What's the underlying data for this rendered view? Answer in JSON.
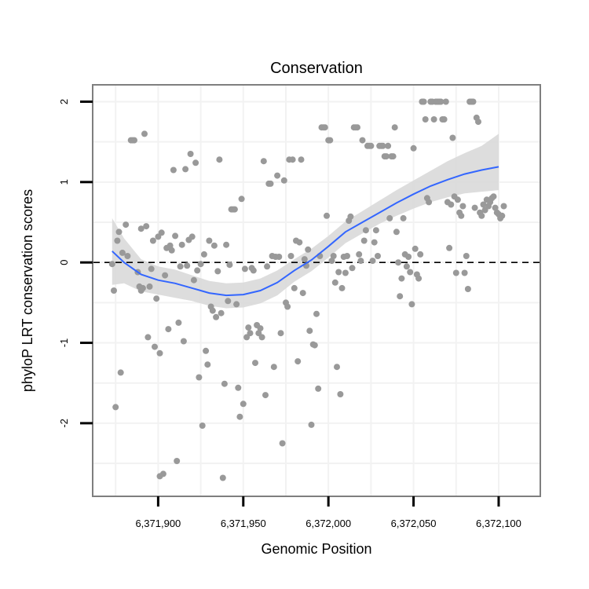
{
  "chart_data": {
    "type": "scatter",
    "title": "Conservation",
    "xlabel": "Genomic Position",
    "ylabel": "phyloP LRT conservation scores",
    "xlim": [
      6371862,
      6372124
    ],
    "ylim": [
      -2.9,
      2.2
    ],
    "x_ticks": [
      6371900,
      6371950,
      6372000,
      6372050,
      6372100
    ],
    "x_tick_labels": [
      "6,371,900",
      "6,371,950",
      "6,372,000",
      "6,372,050",
      "6,372,100"
    ],
    "y_ticks": [
      -2,
      -1,
      0,
      1,
      2
    ],
    "y_tick_labels": [
      "-2",
      "-1",
      "0",
      "1",
      "2"
    ],
    "reference_line": {
      "y": 0,
      "style": "dashed"
    },
    "grid": true,
    "colors": {
      "points": "#999999",
      "smooth": "#3366ff",
      "ribbon": "#d9d9d9",
      "grid": "#f2f2f2",
      "border": "#7f7f7f",
      "refline": "#000000"
    },
    "points": [
      [
        6371873,
        -0.02
      ],
      [
        6371874,
        -0.35
      ],
      [
        6371875,
        -1.8
      ],
      [
        6371876,
        0.27
      ],
      [
        6371877,
        0.38
      ],
      [
        6371878,
        -1.37
      ],
      [
        6371879,
        0.12
      ],
      [
        6371881,
        0.47
      ],
      [
        6371882,
        0.08
      ],
      [
        6371884,
        1.52
      ],
      [
        6371885,
        1.52
      ],
      [
        6371886,
        1.52
      ],
      [
        6371888,
        -0.12
      ],
      [
        6371889,
        -0.3
      ],
      [
        6371890,
        -0.35
      ],
      [
        6371890,
        0.42
      ],
      [
        6371891,
        -0.32
      ],
      [
        6371892,
        1.6
      ],
      [
        6371893,
        0.45
      ],
      [
        6371894,
        -0.93
      ],
      [
        6371895,
        -0.3
      ],
      [
        6371896,
        -0.08
      ],
      [
        6371897,
        0.27
      ],
      [
        6371898,
        -1.05
      ],
      [
        6371899,
        -0.45
      ],
      [
        6371900,
        0.32
      ],
      [
        6371901,
        -1.13
      ],
      [
        6371902,
        0.37
      ],
      [
        6371901,
        -2.66
      ],
      [
        6371903,
        -2.63
      ],
      [
        6371904,
        -0.16
      ],
      [
        6371905,
        0.18
      ],
      [
        6371906,
        -0.83
      ],
      [
        6371907,
        0.21
      ],
      [
        6371908,
        0.15
      ],
      [
        6371909,
        1.15
      ],
      [
        6371910,
        0.33
      ],
      [
        6371911,
        -2.47
      ],
      [
        6371912,
        -0.75
      ],
      [
        6371913,
        -0.05
      ],
      [
        6371914,
        0.22
      ],
      [
        6371915,
        -0.98
      ],
      [
        6371916,
        1.16
      ],
      [
        6371917,
        -0.04
      ],
      [
        6371918,
        0.28
      ],
      [
        6371919,
        1.35
      ],
      [
        6371920,
        0.32
      ],
      [
        6371921,
        -0.22
      ],
      [
        6371922,
        1.24
      ],
      [
        6371923,
        -0.1
      ],
      [
        6371924,
        -1.43
      ],
      [
        6371925,
        -0.02
      ],
      [
        6371926,
        -2.03
      ],
      [
        6371927,
        0.1
      ],
      [
        6371928,
        -1.1
      ],
      [
        6371929,
        -1.27
      ],
      [
        6371930,
        0.27
      ],
      [
        6371931,
        -0.55
      ],
      [
        6371932,
        -0.6
      ],
      [
        6371933,
        0.21
      ],
      [
        6371934,
        -0.68
      ],
      [
        6371935,
        -0.11
      ],
      [
        6371936,
        1.28
      ],
      [
        6371937,
        -0.63
      ],
      [
        6371938,
        -2.68
      ],
      [
        6371939,
        -1.51
      ],
      [
        6371940,
        0.22
      ],
      [
        6371941,
        -0.48
      ],
      [
        6371942,
        -0.03
      ],
      [
        6371943,
        0.66
      ],
      [
        6371944,
        0.66
      ],
      [
        6371945,
        0.66
      ],
      [
        6371946,
        -0.52
      ],
      [
        6371947,
        -1.56
      ],
      [
        6371948,
        -1.92
      ],
      [
        6371949,
        0.79
      ],
      [
        6371950,
        -1.76
      ],
      [
        6371951,
        -0.08
      ],
      [
        6371952,
        -0.93
      ],
      [
        6371953,
        -0.81
      ],
      [
        6371954,
        -0.88
      ],
      [
        6371955,
        -0.07
      ],
      [
        6371956,
        -0.1
      ],
      [
        6371957,
        -1.25
      ],
      [
        6371958,
        -0.78
      ],
      [
        6371959,
        -0.88
      ],
      [
        6371960,
        -0.82
      ],
      [
        6371961,
        -0.93
      ],
      [
        6371962,
        1.26
      ],
      [
        6371963,
        -1.65
      ],
      [
        6371964,
        -0.05
      ],
      [
        6371965,
        0.98
      ],
      [
        6371966,
        0.98
      ],
      [
        6371967,
        0.08
      ],
      [
        6371968,
        -1.3
      ],
      [
        6371969,
        0.07
      ],
      [
        6371970,
        1.08
      ],
      [
        6371971,
        0.07
      ],
      [
        6371972,
        -0.88
      ],
      [
        6371973,
        -2.25
      ],
      [
        6371974,
        1.02
      ],
      [
        6371975,
        -0.5
      ],
      [
        6371976,
        -0.55
      ],
      [
        6371977,
        1.28
      ],
      [
        6371978,
        0.08
      ],
      [
        6371979,
        1.28
      ],
      [
        6371980,
        -0.32
      ],
      [
        6371981,
        0.27
      ],
      [
        6371982,
        -1.23
      ],
      [
        6371983,
        0.25
      ],
      [
        6371984,
        1.28
      ],
      [
        6371985,
        -0.38
      ],
      [
        6371986,
        0.04
      ],
      [
        6371987,
        -0.04
      ],
      [
        6371988,
        0.16
      ],
      [
        6371989,
        -0.85
      ],
      [
        6371990,
        -2.02
      ],
      [
        6371991,
        -1.02
      ],
      [
        6371992,
        -1.03
      ],
      [
        6371993,
        -0.64
      ],
      [
        6371994,
        -1.57
      ],
      [
        6371995,
        0.08
      ],
      [
        6371996,
        1.68
      ],
      [
        6371997,
        1.68
      ],
      [
        6371998,
        1.68
      ],
      [
        6371999,
        0.58
      ],
      [
        6372000,
        1.52
      ],
      [
        6372001,
        1.52
      ],
      [
        6372002,
        0.02
      ],
      [
        6372003,
        0.08
      ],
      [
        6372004,
        -0.25
      ],
      [
        6372005,
        -1.3
      ],
      [
        6372006,
        -0.12
      ],
      [
        6372007,
        -1.64
      ],
      [
        6372008,
        -0.32
      ],
      [
        6372009,
        0.07
      ],
      [
        6372010,
        -0.13
      ],
      [
        6372011,
        0.08
      ],
      [
        6372012,
        0.52
      ],
      [
        6372013,
        0.57
      ],
      [
        6372014,
        -0.07
      ],
      [
        6372015,
        1.68
      ],
      [
        6372016,
        1.68
      ],
      [
        6372017,
        1.68
      ],
      [
        6372018,
        0.1
      ],
      [
        6372019,
        0.02
      ],
      [
        6372020,
        1.52
      ],
      [
        6372021,
        0.27
      ],
      [
        6372022,
        0.4
      ],
      [
        6372023,
        1.45
      ],
      [
        6372024,
        1.45
      ],
      [
        6372025,
        1.45
      ],
      [
        6372026,
        0.02
      ],
      [
        6372027,
        0.25
      ],
      [
        6372028,
        0.4
      ],
      [
        6372029,
        0.08
      ],
      [
        6372030,
        1.45
      ],
      [
        6372031,
        1.45
      ],
      [
        6372032,
        1.45
      ],
      [
        6372033,
        1.32
      ],
      [
        6372034,
        1.32
      ],
      [
        6372035,
        1.45
      ],
      [
        6372036,
        0.55
      ],
      [
        6372037,
        1.32
      ],
      [
        6372038,
        1.32
      ],
      [
        6372039,
        1.68
      ],
      [
        6372040,
        0.38
      ],
      [
        6372041,
        0.0
      ],
      [
        6372042,
        -0.42
      ],
      [
        6372043,
        -0.2
      ],
      [
        6372044,
        0.55
      ],
      [
        6372045,
        0.1
      ],
      [
        6372046,
        -0.05
      ],
      [
        6372047,
        0.07
      ],
      [
        6372048,
        -0.12
      ],
      [
        6372049,
        -0.52
      ],
      [
        6372050,
        1.42
      ],
      [
        6372051,
        0.17
      ],
      [
        6372052,
        -0.15
      ],
      [
        6372053,
        -0.2
      ],
      [
        6372054,
        0.1
      ],
      [
        6372055,
        2.0
      ],
      [
        6372056,
        2.0
      ],
      [
        6372057,
        1.78
      ],
      [
        6372058,
        0.8
      ],
      [
        6372059,
        0.75
      ],
      [
        6372060,
        2.0
      ],
      [
        6372061,
        2.0
      ],
      [
        6372062,
        1.78
      ],
      [
        6372063,
        2.0
      ],
      [
        6372064,
        2.0
      ],
      [
        6372065,
        2.0
      ],
      [
        6372066,
        2.0
      ],
      [
        6372067,
        1.78
      ],
      [
        6372068,
        1.78
      ],
      [
        6372069,
        2.0
      ],
      [
        6372070,
        0.75
      ],
      [
        6372071,
        0.18
      ],
      [
        6372072,
        0.72
      ],
      [
        6372073,
        1.55
      ],
      [
        6372074,
        0.82
      ],
      [
        6372075,
        -0.13
      ],
      [
        6372076,
        0.78
      ],
      [
        6372077,
        0.62
      ],
      [
        6372078,
        0.58
      ],
      [
        6372079,
        0.7
      ],
      [
        6372080,
        -0.13
      ],
      [
        6372081,
        0.08
      ],
      [
        6372082,
        -0.33
      ],
      [
        6372083,
        2.0
      ],
      [
        6372084,
        2.0
      ],
      [
        6372085,
        2.0
      ],
      [
        6372086,
        0.68
      ],
      [
        6372087,
        1.8
      ],
      [
        6372088,
        1.75
      ],
      [
        6372089,
        0.62
      ],
      [
        6372090,
        0.58
      ],
      [
        6372091,
        0.72
      ],
      [
        6372092,
        0.65
      ],
      [
        6372093,
        0.78
      ],
      [
        6372094,
        0.7
      ],
      [
        6372095,
        0.75
      ],
      [
        6372096,
        0.8
      ],
      [
        6372097,
        0.82
      ],
      [
        6372098,
        0.68
      ],
      [
        6372099,
        0.62
      ],
      [
        6372100,
        0.6
      ],
      [
        6372101,
        0.55
      ],
      [
        6372102,
        0.58
      ],
      [
        6372103,
        0.7
      ]
    ],
    "smooth": [
      [
        6371873,
        0.14
      ],
      [
        6371880,
        0.0
      ],
      [
        6371890,
        -0.15
      ],
      [
        6371900,
        -0.22
      ],
      [
        6371910,
        -0.26
      ],
      [
        6371920,
        -0.32
      ],
      [
        6371930,
        -0.38
      ],
      [
        6371940,
        -0.41
      ],
      [
        6371950,
        -0.4
      ],
      [
        6371960,
        -0.35
      ],
      [
        6371970,
        -0.25
      ],
      [
        6371980,
        -0.1
      ],
      [
        6371990,
        0.03
      ],
      [
        6372000,
        0.2
      ],
      [
        6372010,
        0.38
      ],
      [
        6372020,
        0.5
      ],
      [
        6372030,
        0.62
      ],
      [
        6372040,
        0.74
      ],
      [
        6372050,
        0.85
      ],
      [
        6372060,
        0.95
      ],
      [
        6372070,
        1.03
      ],
      [
        6372080,
        1.1
      ],
      [
        6372090,
        1.15
      ],
      [
        6372100,
        1.19
      ]
    ],
    "ribbon": [
      [
        6371873,
        -0.28,
        0.55
      ],
      [
        6371880,
        -0.26,
        0.3
      ],
      [
        6371890,
        -0.36,
        0.04
      ],
      [
        6371900,
        -0.4,
        -0.05
      ],
      [
        6371910,
        -0.44,
        -0.09
      ],
      [
        6371920,
        -0.48,
        -0.16
      ],
      [
        6371930,
        -0.54,
        -0.23
      ],
      [
        6371940,
        -0.57,
        -0.26
      ],
      [
        6371950,
        -0.56,
        -0.25
      ],
      [
        6371960,
        -0.51,
        -0.2
      ],
      [
        6371970,
        -0.41,
        -0.1
      ],
      [
        6371980,
        -0.24,
        0.04
      ],
      [
        6371990,
        -0.11,
        0.17
      ],
      [
        6372000,
        0.06,
        0.33
      ],
      [
        6372010,
        0.24,
        0.51
      ],
      [
        6372020,
        0.36,
        0.64
      ],
      [
        6372030,
        0.48,
        0.77
      ],
      [
        6372040,
        0.58,
        0.9
      ],
      [
        6372050,
        0.67,
        1.02
      ],
      [
        6372060,
        0.75,
        1.14
      ],
      [
        6372070,
        0.81,
        1.26
      ],
      [
        6372080,
        0.86,
        1.36
      ],
      [
        6372090,
        0.88,
        1.45
      ],
      [
        6372100,
        0.9,
        1.6
      ]
    ]
  }
}
